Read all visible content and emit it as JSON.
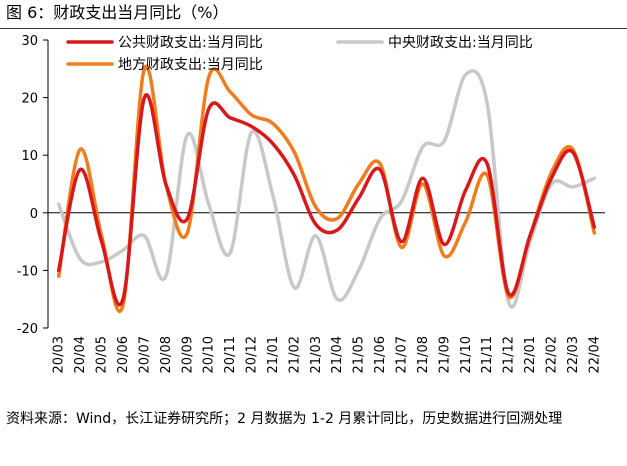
{
  "figure_title": "图 6：财政支出当月同比（%）",
  "source_note": "资料来源：Wind，长江证券研究所；2 月数据为 1-2 月累计同比，历史数据进行回溯处理",
  "chart_data": {
    "type": "line",
    "title": "财政支出当月同比（%）",
    "xlabel": "",
    "ylabel": "",
    "ylim": [
      -20,
      30
    ],
    "yticks": [
      -20,
      -10,
      0,
      10,
      20,
      30
    ],
    "grid": false,
    "legend_position": "top",
    "categories": [
      "20/03",
      "20/04",
      "20/05",
      "20/06",
      "20/07",
      "20/08",
      "20/09",
      "20/10",
      "20/11",
      "20/12",
      "21/01",
      "21/02",
      "21/03",
      "21/04",
      "21/05",
      "21/06",
      "21/07",
      "21/08",
      "21/09",
      "21/10",
      "21/11",
      "21/12",
      "22/01",
      "22/02",
      "22/03",
      "22/04"
    ],
    "series": [
      {
        "name": "公共财政支出:当月同比",
        "color": "#d7191c",
        "values": [
          -10,
          7.5,
          -5,
          -15,
          20,
          5,
          -1,
          18,
          16.5,
          15,
          12,
          6.5,
          -2,
          -3,
          2.5,
          7.5,
          -5,
          6,
          -5.5,
          4,
          8.5,
          -14,
          -4,
          6,
          10.5,
          -2.5
        ]
      },
      {
        "name": "中央财政支出:当月同比",
        "color": "#c8c8c8",
        "values": [
          1.5,
          -8,
          -8.5,
          -6.5,
          -4,
          -11,
          13.5,
          1.5,
          -7,
          14,
          3,
          -13,
          -4,
          -15,
          -10,
          -1,
          2,
          11.5,
          12.5,
          24,
          19,
          -15.5,
          -5,
          5,
          4.5,
          6
        ]
      },
      {
        "name": "地方财政支出:当月同比",
        "color": "#f07c20",
        "values": [
          -11,
          11,
          -4,
          -16,
          25,
          5,
          -3.5,
          23.5,
          21,
          17,
          15.5,
          10.5,
          1,
          -1,
          5,
          8.5,
          -6,
          5,
          -7.5,
          -1.5,
          6.5,
          -14.5,
          -4,
          7,
          11,
          -3.5
        ]
      }
    ]
  }
}
